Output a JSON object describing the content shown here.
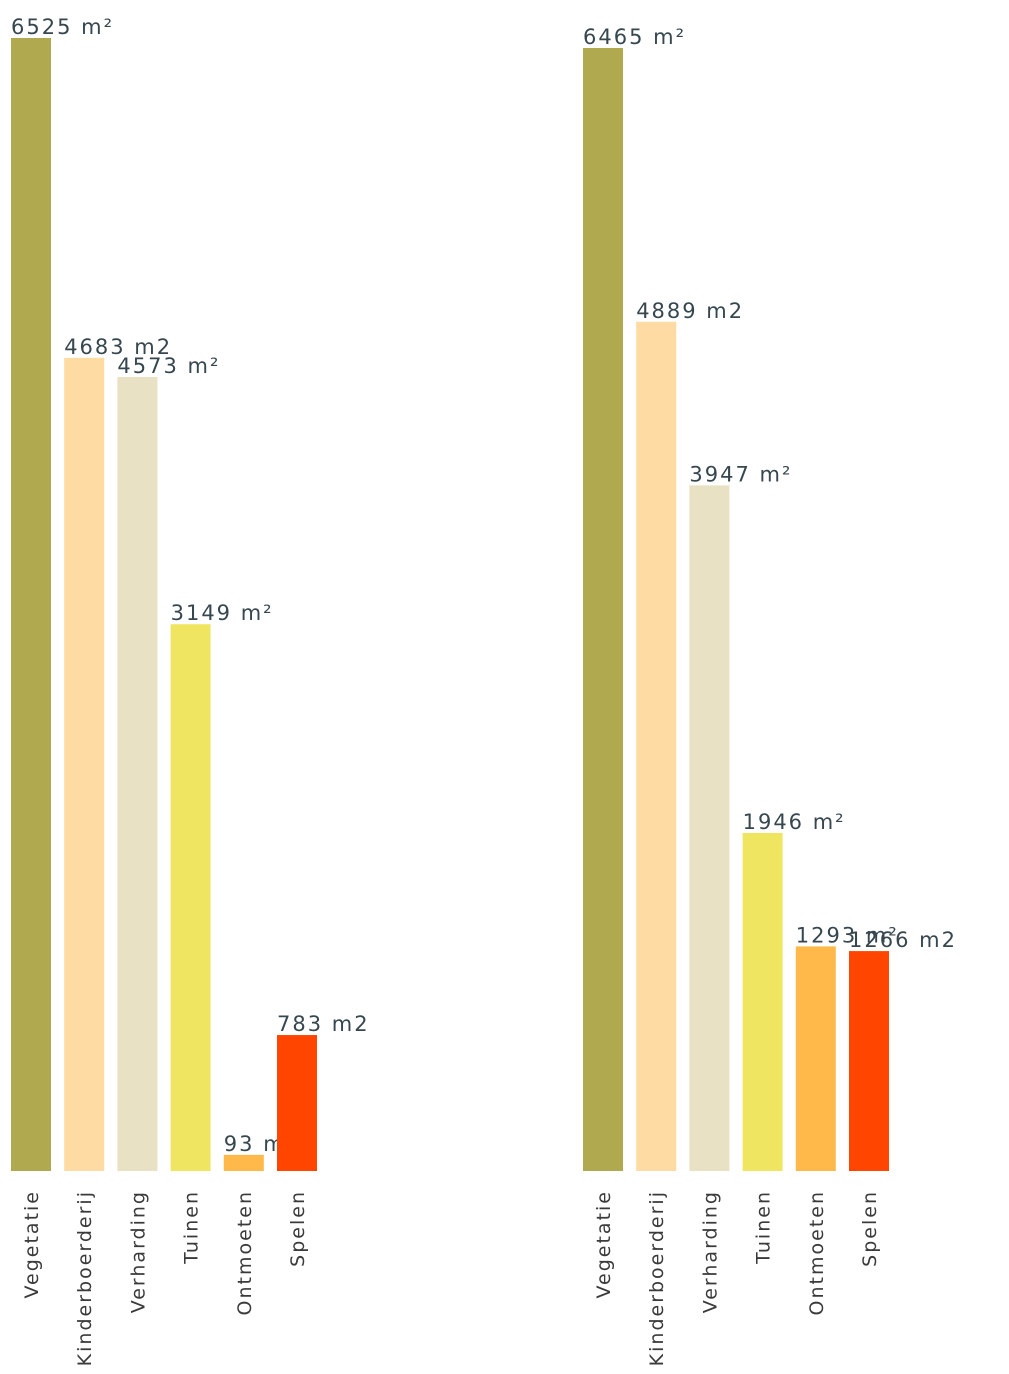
{
  "chart_data": [
    {
      "type": "bar",
      "categories": [
        "Vegetatie",
        "Kinderboerderij",
        "Verharding",
        "Tuinen",
        "Ontmoeten",
        "Spelen"
      ],
      "values": [
        6525,
        4683,
        4573,
        3149,
        93,
        783
      ],
      "value_labels": [
        "6525 m²",
        "4683 m2",
        "4573 m²",
        "3149 m²",
        "93 m²",
        "783 m2"
      ],
      "colors": [
        "#b1a950",
        "#fddba2",
        "#e8e1c3",
        "#f0e561",
        "#ffb84a",
        "#ff4500"
      ],
      "ylim": [
        0,
        6525
      ],
      "grid": false,
      "legend": "none"
    },
    {
      "type": "bar",
      "categories": [
        "Vegetatie",
        "Kinderboerderij",
        "Verharding",
        "Tuinen",
        "Ontmoeten",
        "Spelen"
      ],
      "values": [
        6465,
        4889,
        3947,
        1946,
        1293,
        1266
      ],
      "value_labels": [
        "6465 m²",
        "4889 m2",
        "3947 m²",
        "1946 m²",
        "1293 m²",
        "1266 m2"
      ],
      "colors": [
        "#b1a950",
        "#fddba2",
        "#e8e1c3",
        "#f0e561",
        "#ffb84a",
        "#ff4500"
      ],
      "ylim": [
        0,
        6465
      ],
      "grid": false,
      "legend": "none"
    }
  ]
}
